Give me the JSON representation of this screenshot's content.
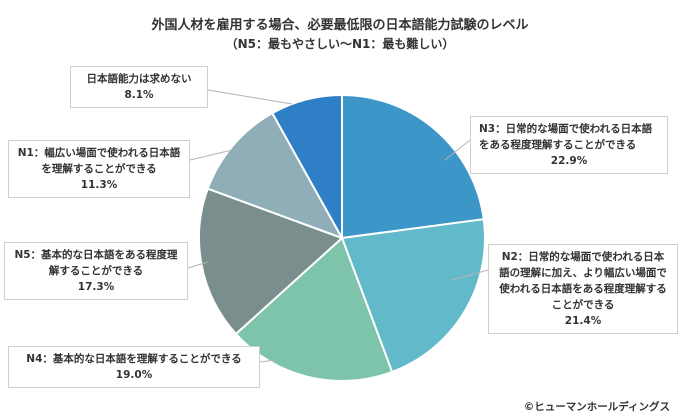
{
  "chart_data": {
    "type": "pie",
    "title": "外国人材を雇用する場合、必要最低限の日本語能力試験のレベル",
    "subtitle": "（N5：最もやさしい〜N1：最も難しい）",
    "slices": [
      {
        "label": "N3：日常的な場面で使われる日本語をある程度理解することができる",
        "value": 22.9,
        "value_text": "22.9%",
        "color": "#3d96c8"
      },
      {
        "label": "N2：日常的な場面で使われる日本語の理解に加え、より幅広い場面で使われる日本語をある程度理解することができる",
        "value": 21.4,
        "value_text": "21.4%",
        "color": "#62b9c9"
      },
      {
        "label": "N4：基本的な日本語を理解することができる",
        "value": 19.0,
        "value_text": "19.0%",
        "color": "#7ec4ab"
      },
      {
        "label": "N5：基本的な日本語をある程度理解することができる",
        "value": 17.3,
        "value_text": "17.3%",
        "color": "#7a8e8e"
      },
      {
        "label": "N1：幅広い場面で使われる日本語を理解することができる",
        "value": 11.3,
        "value_text": "11.3%",
        "color": "#90aeb8"
      },
      {
        "label": "日本語能力は求めない",
        "value": 8.1,
        "value_text": "8.1%",
        "color": "#2f7fc6"
      }
    ],
    "start_angle_deg": 0,
    "direction": "clockwise"
  },
  "credit": "©ヒューマンホールディングス"
}
